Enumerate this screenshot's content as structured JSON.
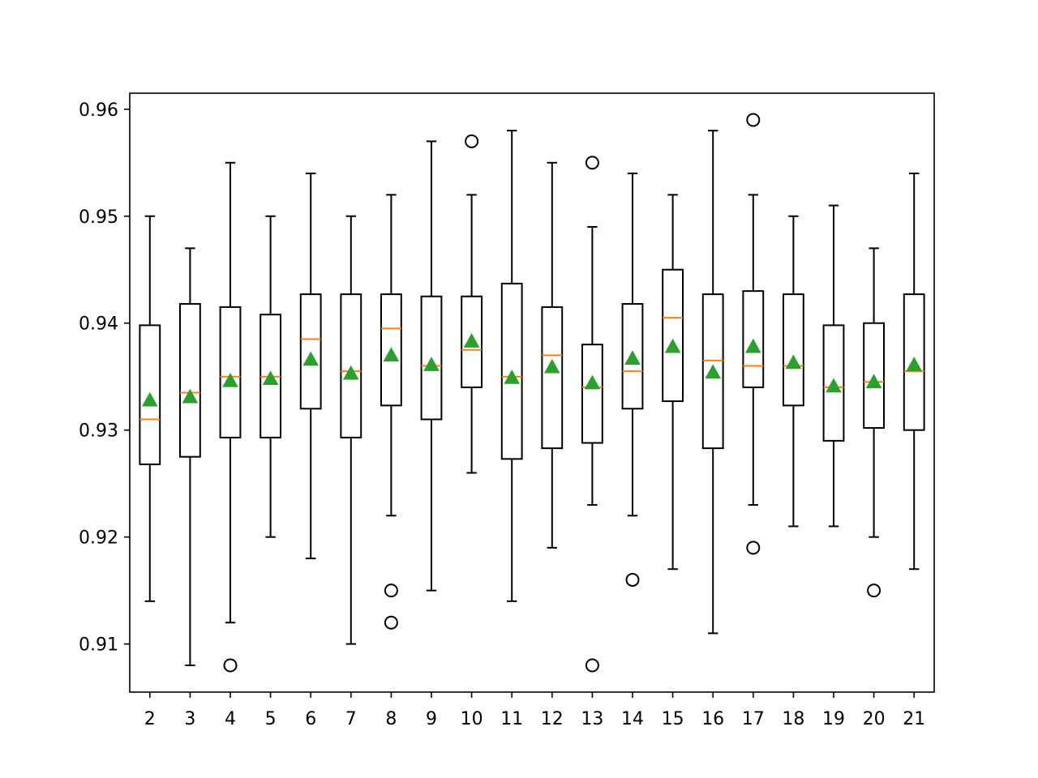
{
  "chart_data": {
    "type": "box",
    "title": "",
    "xlabel": "",
    "ylabel": "",
    "ylim": [
      0.9055,
      0.9615
    ],
    "yticks": [
      0.91,
      0.92,
      0.93,
      0.94,
      0.95,
      0.96
    ],
    "ytick_labels": [
      "0.91",
      "0.92",
      "0.93",
      "0.94",
      "0.95",
      "0.96"
    ],
    "grid": false,
    "legend": "none",
    "colors": {
      "box": "#000000",
      "median": "#ff7f0e",
      "mean": "#2ca02c",
      "flier": "#000000"
    },
    "boxes": [
      {
        "label": "2",
        "whislo": 0.914,
        "q1": 0.9268,
        "med": 0.931,
        "q3": 0.9398,
        "whishi": 0.95,
        "mean": 0.9328,
        "fliers": []
      },
      {
        "label": "3",
        "whislo": 0.908,
        "q1": 0.9275,
        "med": 0.9335,
        "q3": 0.9418,
        "whishi": 0.947,
        "mean": 0.9331,
        "fliers": []
      },
      {
        "label": "4",
        "whislo": 0.912,
        "q1": 0.9293,
        "med": 0.935,
        "q3": 0.9415,
        "whishi": 0.955,
        "mean": 0.9346,
        "fliers": [
          0.908
        ]
      },
      {
        "label": "5",
        "whislo": 0.92,
        "q1": 0.9293,
        "med": 0.935,
        "q3": 0.9408,
        "whishi": 0.95,
        "mean": 0.9348,
        "fliers": []
      },
      {
        "label": "6",
        "whislo": 0.918,
        "q1": 0.932,
        "med": 0.9385,
        "q3": 0.9427,
        "whishi": 0.954,
        "mean": 0.9366,
        "fliers": []
      },
      {
        "label": "7",
        "whislo": 0.91,
        "q1": 0.9293,
        "med": 0.9355,
        "q3": 0.9427,
        "whishi": 0.95,
        "mean": 0.9353,
        "fliers": []
      },
      {
        "label": "8",
        "whislo": 0.922,
        "q1": 0.9323,
        "med": 0.9395,
        "q3": 0.9427,
        "whishi": 0.952,
        "mean": 0.937,
        "fliers": [
          0.915,
          0.912
        ]
      },
      {
        "label": "9",
        "whislo": 0.915,
        "q1": 0.931,
        "med": 0.936,
        "q3": 0.9425,
        "whishi": 0.957,
        "mean": 0.9361,
        "fliers": []
      },
      {
        "label": "10",
        "whislo": 0.926,
        "q1": 0.934,
        "med": 0.9375,
        "q3": 0.9425,
        "whishi": 0.952,
        "mean": 0.9383,
        "fliers": [
          0.957
        ]
      },
      {
        "label": "11",
        "whislo": 0.914,
        "q1": 0.9273,
        "med": 0.935,
        "q3": 0.9437,
        "whishi": 0.958,
        "mean": 0.9349,
        "fliers": []
      },
      {
        "label": "12",
        "whislo": 0.919,
        "q1": 0.9283,
        "med": 0.937,
        "q3": 0.9415,
        "whishi": 0.955,
        "mean": 0.9359,
        "fliers": []
      },
      {
        "label": "13",
        "whislo": 0.923,
        "q1": 0.9288,
        "med": 0.934,
        "q3": 0.938,
        "whishi": 0.949,
        "mean": 0.9344,
        "fliers": [
          0.955,
          0.908
        ]
      },
      {
        "label": "14",
        "whislo": 0.922,
        "q1": 0.932,
        "med": 0.9355,
        "q3": 0.9418,
        "whishi": 0.954,
        "mean": 0.9367,
        "fliers": [
          0.916
        ]
      },
      {
        "label": "15",
        "whislo": 0.917,
        "q1": 0.9327,
        "med": 0.9405,
        "q3": 0.945,
        "whishi": 0.952,
        "mean": 0.9378,
        "fliers": []
      },
      {
        "label": "16",
        "whislo": 0.911,
        "q1": 0.9283,
        "med": 0.9365,
        "q3": 0.9427,
        "whishi": 0.958,
        "mean": 0.9354,
        "fliers": []
      },
      {
        "label": "17",
        "whislo": 0.923,
        "q1": 0.934,
        "med": 0.936,
        "q3": 0.943,
        "whishi": 0.952,
        "mean": 0.9378,
        "fliers": [
          0.959,
          0.919
        ]
      },
      {
        "label": "18",
        "whislo": 0.921,
        "q1": 0.9323,
        "med": 0.936,
        "q3": 0.9427,
        "whishi": 0.95,
        "mean": 0.9363,
        "fliers": []
      },
      {
        "label": "19",
        "whislo": 0.921,
        "q1": 0.929,
        "med": 0.934,
        "q3": 0.9398,
        "whishi": 0.951,
        "mean": 0.9341,
        "fliers": []
      },
      {
        "label": "20",
        "whislo": 0.92,
        "q1": 0.9302,
        "med": 0.9345,
        "q3": 0.94,
        "whishi": 0.947,
        "mean": 0.9345,
        "fliers": [
          0.915
        ]
      },
      {
        "label": "21",
        "whislo": 0.917,
        "q1": 0.93,
        "med": 0.9355,
        "q3": 0.9427,
        "whishi": 0.954,
        "mean": 0.9361,
        "fliers": []
      }
    ]
  }
}
